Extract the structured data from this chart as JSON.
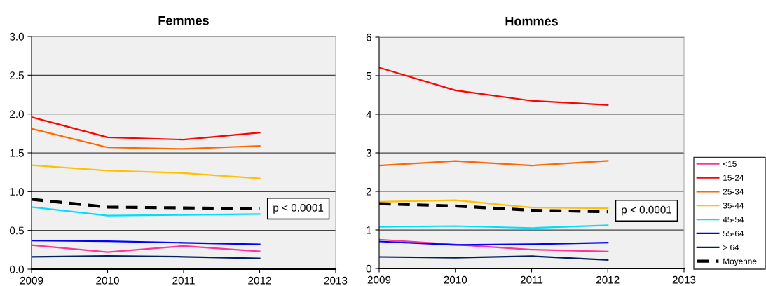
{
  "chart_data": [
    {
      "type": "line",
      "title": "Femmes",
      "x": [
        2009,
        2010,
        2011,
        2012
      ],
      "xlim": [
        2009,
        2013
      ],
      "xticks": [
        2009,
        2010,
        2011,
        2012,
        2013
      ],
      "ylim": [
        0,
        3
      ],
      "yticks": [
        {
          "value": 0,
          "label": "0.0"
        },
        {
          "value": 0.5,
          "label": "0.5"
        },
        {
          "value": 1,
          "label": "1.0"
        },
        {
          "value": 1.5,
          "label": "1.5"
        },
        {
          "value": 2,
          "label": "2.0"
        },
        {
          "value": 2.5,
          "label": "2.5"
        },
        {
          "value": 3,
          "label": "3.0"
        }
      ],
      "grid": "y",
      "legend": "right",
      "annotations": [
        "p < 0.0001"
      ],
      "series": [
        {
          "name": "<15",
          "color": "#ff3399",
          "values": [
            0.31,
            0.22,
            0.3,
            0.23
          ]
        },
        {
          "name": "15-24",
          "color": "#ff0000",
          "values": [
            1.96,
            1.7,
            1.67,
            1.76
          ]
        },
        {
          "name": "25-34",
          "color": "#ff6600",
          "values": [
            1.81,
            1.57,
            1.55,
            1.59
          ]
        },
        {
          "name": "35-44",
          "color": "#ffc000",
          "values": [
            1.34,
            1.27,
            1.24,
            1.17
          ]
        },
        {
          "name": "45-54",
          "color": "#00ddff",
          "values": [
            0.8,
            0.69,
            0.7,
            0.71
          ]
        },
        {
          "name": "55-64",
          "color": "#0000ff",
          "values": [
            0.37,
            0.36,
            0.34,
            0.32
          ]
        },
        {
          "name": "> 64",
          "color": "#002060",
          "values": [
            0.16,
            0.17,
            0.16,
            0.14
          ]
        },
        {
          "name": "Moyenne",
          "color": "#000000",
          "line_style": "dashed",
          "values": [
            0.9,
            0.8,
            0.79,
            0.78
          ]
        }
      ]
    },
    {
      "type": "line",
      "title": "Hommes",
      "x": [
        2009,
        2010,
        2011,
        2012
      ],
      "xlim": [
        2009,
        2013
      ],
      "xticks": [
        2009,
        2010,
        2011,
        2012,
        2013
      ],
      "ylim": [
        0,
        6
      ],
      "yticks": [
        0,
        1,
        2,
        3,
        4,
        5,
        6
      ],
      "grid": "y",
      "annotations": [
        "p < 0.0001"
      ],
      "series": [
        {
          "color": "#ff3399",
          "values": [
            0.75,
            0.62,
            0.49,
            0.44
          ]
        },
        {
          "color": "#ff0000",
          "values": [
            5.21,
            4.62,
            4.35,
            4.24
          ]
        },
        {
          "color": "#ff6600",
          "values": [
            2.67,
            2.79,
            2.67,
            2.79
          ]
        },
        {
          "color": "#ffc000",
          "values": [
            1.73,
            1.77,
            1.58,
            1.56
          ]
        },
        {
          "color": "#00ddff",
          "values": [
            1.08,
            1.1,
            1.05,
            1.12
          ]
        },
        {
          "color": "#0000ff",
          "values": [
            0.7,
            0.61,
            0.63,
            0.67
          ]
        },
        {
          "color": "#002060",
          "values": [
            0.3,
            0.28,
            0.32,
            0.22
          ]
        },
        {
          "color": "#000000",
          "line_style": "dashed",
          "values": [
            1.68,
            1.62,
            1.51,
            1.47
          ]
        }
      ]
    }
  ]
}
